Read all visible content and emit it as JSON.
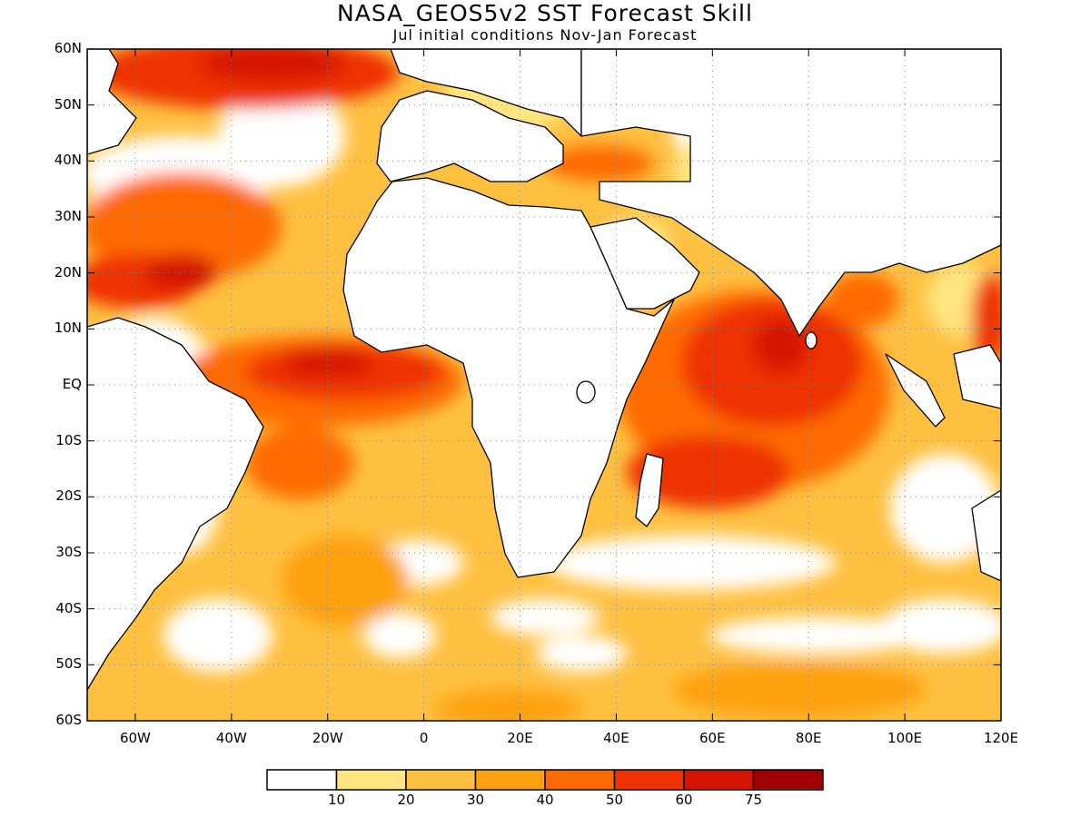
{
  "title": "NASA_GEOS5v2 SST Forecast Skill",
  "subtitle": "Jul initial conditions   Nov-Jan Forecast",
  "map": {
    "lon_range": [
      -70,
      120
    ],
    "lat_range": [
      -60,
      60
    ],
    "lat_ticks": [
      {
        "value": 60,
        "label": "60N"
      },
      {
        "value": 50,
        "label": "50N"
      },
      {
        "value": 40,
        "label": "40N"
      },
      {
        "value": 30,
        "label": "30N"
      },
      {
        "value": 20,
        "label": "20N"
      },
      {
        "value": 10,
        "label": "10N"
      },
      {
        "value": 0,
        "label": "EQ"
      },
      {
        "value": -10,
        "label": "10S"
      },
      {
        "value": -20,
        "label": "20S"
      },
      {
        "value": -30,
        "label": "30S"
      },
      {
        "value": -40,
        "label": "40S"
      },
      {
        "value": -50,
        "label": "50S"
      },
      {
        "value": -60,
        "label": "60S"
      }
    ],
    "lon_ticks": [
      {
        "value": -60,
        "label": "60W"
      },
      {
        "value": -40,
        "label": "40W"
      },
      {
        "value": -20,
        "label": "20W"
      },
      {
        "value": 0,
        "label": "0"
      },
      {
        "value": 20,
        "label": "20E"
      },
      {
        "value": 40,
        "label": "40E"
      },
      {
        "value": 60,
        "label": "60E"
      },
      {
        "value": 80,
        "label": "80E"
      },
      {
        "value": 100,
        "label": "100E"
      },
      {
        "value": 120,
        "label": "120E"
      }
    ],
    "colorbar": {
      "colors": [
        "#ffffff",
        "#ffe680",
        "#ffc040",
        "#ffa010",
        "#ff6a00",
        "#ee3300",
        "#d41400",
        "#a00000"
      ],
      "labels": [
        "10",
        "20",
        "30",
        "40",
        "50",
        "60",
        "75"
      ]
    },
    "land_color": "#ffffff",
    "coast_color": "#000000"
  }
}
